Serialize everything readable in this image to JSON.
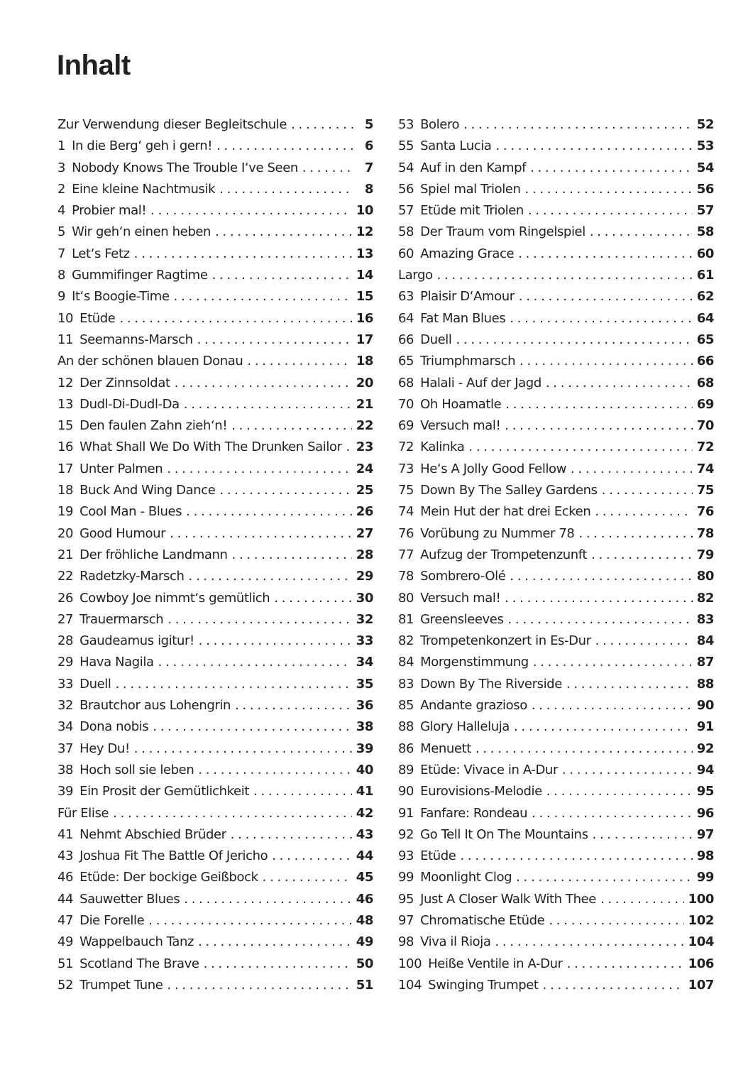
{
  "heading": "Inhalt",
  "left": [
    {
      "num": "",
      "title": "Zur Verwendung dieser Begleitschule",
      "page": "5"
    },
    {
      "num": "1",
      "title": "In die Berg‘ geh i gern!",
      "page": "6"
    },
    {
      "num": "3",
      "title": "Nobody Knows The Trouble I‘ve Seen",
      "page": "7"
    },
    {
      "num": "2",
      "title": "Eine kleine Nachtmusik",
      "page": "8"
    },
    {
      "num": "4",
      "title": "Probier mal!",
      "page": "10"
    },
    {
      "num": "5",
      "title": "Wir geh‘n einen heben",
      "page": "12"
    },
    {
      "num": "7",
      "title": "Let‘s Fetz",
      "page": "13"
    },
    {
      "num": "8",
      "title": "Gummifinger Ragtime",
      "page": "14"
    },
    {
      "num": "9",
      "title": "It‘s Boogie-Time",
      "page": "15"
    },
    {
      "num": "10",
      "title": "Etüde",
      "page": "16"
    },
    {
      "num": "11",
      "title": "Seemanns-Marsch",
      "page": "17"
    },
    {
      "num": "",
      "title": "An der schönen blauen Donau",
      "page": "18"
    },
    {
      "num": "12",
      "title": "Der Zinnsoldat",
      "page": "20"
    },
    {
      "num": "13",
      "title": "Dudl-Di-Dudl-Da",
      "page": "21"
    },
    {
      "num": "15",
      "title": "Den faulen Zahn zieh‘n!",
      "page": "22"
    },
    {
      "num": "16",
      "title": "What Shall We Do With The Drunken Sailor",
      "page": "23"
    },
    {
      "num": "17",
      "title": "Unter Palmen",
      "page": "24"
    },
    {
      "num": "18",
      "title": "Buck And Wing Dance",
      "page": "25"
    },
    {
      "num": "19",
      "title": "Cool Man - Blues",
      "page": "26"
    },
    {
      "num": "20",
      "title": "Good Humour",
      "page": "27"
    },
    {
      "num": "21",
      "title": "Der fröhliche Landmann",
      "page": "28"
    },
    {
      "num": "22",
      "title": "Radetzky-Marsch",
      "page": "29"
    },
    {
      "num": "26",
      "title": "Cowboy Joe nimmt‘s gemütlich",
      "page": "30"
    },
    {
      "num": "27",
      "title": "Trauermarsch",
      "page": "32"
    },
    {
      "num": "28",
      "title": "Gaudeamus igitur!",
      "page": "33"
    },
    {
      "num": "29",
      "title": "Hava Nagila",
      "page": "34"
    },
    {
      "num": "33",
      "title": "Duell",
      "page": "35"
    },
    {
      "num": "32",
      "title": "Brautchor aus Lohengrin",
      "page": "36"
    },
    {
      "num": "34",
      "title": "Dona nobis",
      "page": "38"
    },
    {
      "num": "37",
      "title": "Hey Du!",
      "page": "39"
    },
    {
      "num": "38",
      "title": "Hoch soll sie leben",
      "page": "40"
    },
    {
      "num": "39",
      "title": "Ein Prosit der Gemütlichkeit",
      "page": "41"
    },
    {
      "num": "",
      "title": "Für Elise",
      "page": "42"
    },
    {
      "num": "41",
      "title": "Nehmt Abschied Brüder",
      "page": "43"
    },
    {
      "num": "43",
      "title": "Joshua Fit The Battle Of Jericho",
      "page": "44"
    },
    {
      "num": "46",
      "title": "Etüde: Der bockige Geißbock",
      "page": "45"
    },
    {
      "num": "44",
      "title": "Sauwetter Blues",
      "page": "46"
    },
    {
      "num": "47",
      "title": "Die Forelle",
      "page": "48"
    },
    {
      "num": "49",
      "title": "Wappelbauch Tanz",
      "page": "49"
    },
    {
      "num": "51",
      "title": "Scotland The Brave",
      "page": "50"
    },
    {
      "num": "52",
      "title": "Trumpet Tune",
      "page": "51"
    }
  ],
  "right": [
    {
      "num": "53",
      "title": "Bolero",
      "page": "52"
    },
    {
      "num": "55",
      "title": "Santa Lucia",
      "page": "53"
    },
    {
      "num": "54",
      "title": "Auf in den Kampf",
      "page": "54"
    },
    {
      "num": "56",
      "title": "Spiel mal Triolen",
      "page": "56"
    },
    {
      "num": "57",
      "title": "Etüde mit Triolen",
      "page": "57"
    },
    {
      "num": "58",
      "title": "Der Traum vom Ringelspiel",
      "page": "58"
    },
    {
      "num": "60",
      "title": "Amazing Grace",
      "page": "60"
    },
    {
      "num": "",
      "title": "Largo",
      "page": "61"
    },
    {
      "num": "63",
      "title": "Plaisir D‘Amour",
      "page": "62"
    },
    {
      "num": "64",
      "title": "Fat Man Blues",
      "page": "64"
    },
    {
      "num": "66",
      "title": "Duell",
      "page": "65"
    },
    {
      "num": "65",
      "title": "Triumphmarsch",
      "page": "66"
    },
    {
      "num": "68",
      "title": "Halali - Auf der Jagd",
      "page": "68"
    },
    {
      "num": "70",
      "title": "Oh Hoamatle",
      "page": "69"
    },
    {
      "num": "69",
      "title": "Versuch mal!",
      "page": "70"
    },
    {
      "num": "72",
      "title": "Kalinka",
      "page": "72"
    },
    {
      "num": "73",
      "title": "He‘s A Jolly Good Fellow",
      "page": "74"
    },
    {
      "num": "75",
      "title": "Down By The Salley Gardens",
      "page": "75"
    },
    {
      "num": "74",
      "title": "Mein Hut der hat drei Ecken",
      "page": "76"
    },
    {
      "num": "76",
      "title": "Vorübung zu Nummer 78",
      "page": "78"
    },
    {
      "num": "77",
      "title": "Aufzug der Trompetenzunft",
      "page": "79"
    },
    {
      "num": "78",
      "title": "Sombrero-Olé",
      "page": "80"
    },
    {
      "num": "80",
      "title": "Versuch mal!",
      "page": "82"
    },
    {
      "num": "81",
      "title": "Greensleeves",
      "page": "83"
    },
    {
      "num": "82",
      "title": "Trompetenkonzert in Es-Dur",
      "page": "84"
    },
    {
      "num": "84",
      "title": "Morgenstimmung",
      "page": "87"
    },
    {
      "num": "83",
      "title": "Down By The Riverside",
      "page": "88"
    },
    {
      "num": "85",
      "title": "Andante grazioso",
      "page": "90"
    },
    {
      "num": "88",
      "title": "Glory Halleluja",
      "page": "91"
    },
    {
      "num": "86",
      "title": "Menuett",
      "page": "92"
    },
    {
      "num": "89",
      "title": "Etüde: Vivace in A-Dur",
      "page": "94"
    },
    {
      "num": "90",
      "title": "Eurovisions-Melodie",
      "page": "95"
    },
    {
      "num": "91",
      "title": "Fanfare: Rondeau",
      "page": "96"
    },
    {
      "num": "92",
      "title": "Go Tell It On The Mountains",
      "page": "97"
    },
    {
      "num": "93",
      "title": "Etüde",
      "page": "98"
    },
    {
      "num": "99",
      "title": "Moonlight Clog",
      "page": "99"
    },
    {
      "num": "95",
      "title": "Just A Closer Walk With Thee",
      "page": "100"
    },
    {
      "num": "97",
      "title": "Chromatische Etüde",
      "page": "102"
    },
    {
      "num": "98",
      "title": "Viva il Rioja",
      "page": "104"
    },
    {
      "num": "100",
      "title": "Heiße Ventile in A-Dur",
      "page": "106"
    },
    {
      "num": "104",
      "title": "Swinging Trumpet",
      "page": "107"
    }
  ]
}
